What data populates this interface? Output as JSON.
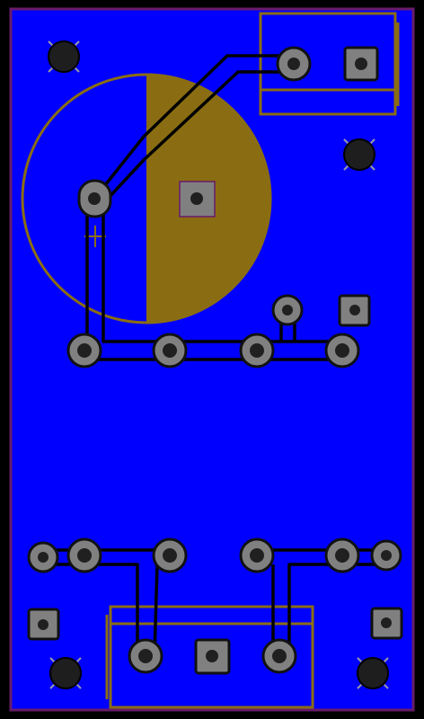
{
  "colors": {
    "background": "#000000",
    "copper": "#0000ff",
    "edge_cuts": "#6a1b6a",
    "silkscreen": "#8a6d12",
    "pad_fill": "#808080",
    "pad_outline": "#0a0a2a",
    "hole": "#202020",
    "trace": "#000000",
    "mounting_hole": "#1e1e1e",
    "mounting_cross": "#9a9aa8"
  },
  "components": {
    "electrolytic_capacitor": {
      "kind": "capacitor",
      "polarity_mark": "+"
    },
    "top_connector": {
      "kind": "2-pin-header"
    },
    "bottom_connector": {
      "kind": "3-pin-header"
    }
  }
}
